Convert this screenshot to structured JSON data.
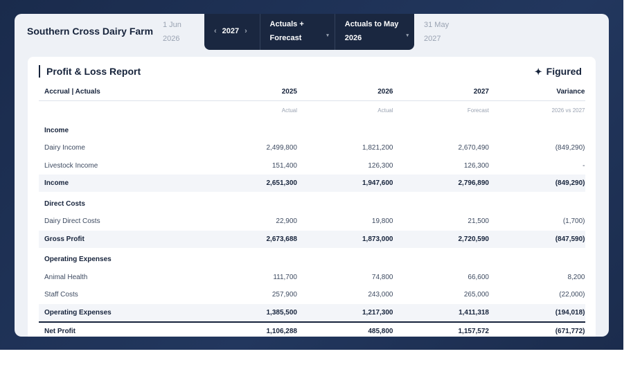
{
  "header": {
    "title": "Southern Cross Dairy Farm",
    "start_date": "1 Jun 2026",
    "year": "2027",
    "view": "Actuals + Forecast",
    "actuals_to": "Actuals to May 2026",
    "end_date": "31 May 2027"
  },
  "report": {
    "title": "Profit & Loss Report",
    "brand": "Figured",
    "columns": [
      "Accrual | Actuals",
      "2025",
      "2026",
      "2027",
      "Variance"
    ],
    "column_notes": [
      "Actual",
      "Actual",
      "Forecast",
      "2026 vs 2027"
    ],
    "sections": [
      {
        "heading": "Income",
        "rows": [
          {
            "label": "Dairy Income",
            "values": [
              "2,499,800",
              "1,821,200",
              "2,670,490",
              "(849,290)"
            ]
          },
          {
            "label": "Livestock Income",
            "values": [
              "151,400",
              "126,300",
              "126,300",
              "-"
            ]
          }
        ],
        "total": {
          "label": "Income",
          "values": [
            "2,651,300",
            "1,947,600",
            "2,796,890",
            "(849,290)"
          ]
        }
      },
      {
        "heading": "Direct Costs",
        "rows": [
          {
            "label": "Dairy Direct Costs",
            "values": [
              "22,900",
              "19,800",
              "21,500",
              "(1,700)"
            ]
          }
        ],
        "total": {
          "label": "Gross Profit",
          "values": [
            "2,673,688",
            "1,873,000",
            "2,720,590",
            "(847,590)"
          ]
        }
      },
      {
        "heading": "Operating Expenses",
        "rows": [
          {
            "label": "Animal Health",
            "values": [
              "111,700",
              "74,800",
              "66,600",
              "8,200"
            ]
          },
          {
            "label": "Staff Costs",
            "values": [
              "257,900",
              "243,000",
              "265,000",
              "(22,000)"
            ]
          }
        ],
        "total": {
          "label": "Operating Expenses",
          "values": [
            "1,385,500",
            "1,217,300",
            "1,411,318",
            "(194,018)"
          ]
        }
      }
    ],
    "net_profit": {
      "label": "Net Profit",
      "values": [
        "1,106,288",
        "485,800",
        "1,157,572",
        "(671,772)"
      ]
    }
  }
}
